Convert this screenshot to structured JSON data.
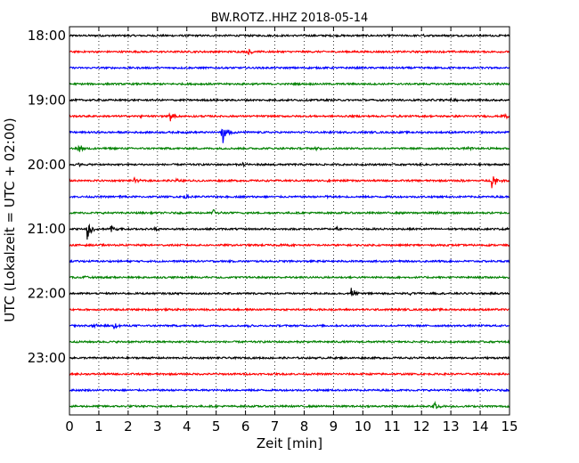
{
  "chart_data": {
    "type": "line",
    "title": "BW.ROTZ..HHZ 2018-05-14",
    "xlabel": "Zeit  [min]",
    "ylabel": "UTC (Lokalzeit = UTC + 02:00)",
    "xlim": [
      0,
      15
    ],
    "x_ticks": [
      "0",
      "1",
      "2",
      "3",
      "4",
      "5",
      "6",
      "7",
      "8",
      "9",
      "10",
      "11",
      "12",
      "13",
      "14",
      "15"
    ],
    "y_tick_labels": [
      "18:00",
      "19:00",
      "20:00",
      "21:00",
      "22:00",
      "23:00"
    ],
    "grid": "vertical dotted",
    "trace_colors": [
      "#000000",
      "#ff0000",
      "#0000ff",
      "#008000"
    ],
    "traces": [
      {
        "start": "18:00",
        "events": [
          {
            "t": 12.0,
            "amp": 0.1
          },
          {
            "t": 13.9,
            "amp": 0.08
          }
        ]
      },
      {
        "start": "18:15",
        "events": [
          {
            "t": 6.1,
            "amp": 0.45
          }
        ]
      },
      {
        "start": "18:30",
        "events": []
      },
      {
        "start": "18:45",
        "events": []
      },
      {
        "start": "19:00",
        "events": [
          {
            "t": 10.5,
            "amp": 0.15
          },
          {
            "t": 12.2,
            "amp": 0.15
          },
          {
            "t": 13.0,
            "amp": 0.2
          }
        ]
      },
      {
        "start": "19:15",
        "events": [
          {
            "t": 2.4,
            "amp": 0.1
          },
          {
            "t": 3.4,
            "amp": 0.6
          },
          {
            "t": 14.8,
            "amp": 0.3
          }
        ]
      },
      {
        "start": "19:30",
        "events": [
          {
            "t": 5.2,
            "amp": 1.5
          }
        ]
      },
      {
        "start": "19:45",
        "events": [
          {
            "t": 0.3,
            "amp": 0.5
          },
          {
            "t": 8.4,
            "amp": 0.2
          },
          {
            "t": 13.6,
            "amp": 0.2
          }
        ]
      },
      {
        "start": "20:00",
        "events": [
          {
            "t": 0.3,
            "amp": 0.2
          },
          {
            "t": 5.9,
            "amp": 0.25
          }
        ]
      },
      {
        "start": "20:15",
        "events": [
          {
            "t": 2.2,
            "amp": 0.25
          },
          {
            "t": 3.6,
            "amp": 0.25
          },
          {
            "t": 8.8,
            "amp": 0.3
          },
          {
            "t": 13.3,
            "amp": 0.15
          },
          {
            "t": 14.4,
            "amp": 1.0
          }
        ]
      },
      {
        "start": "20:30",
        "events": [
          {
            "t": 1.7,
            "amp": 0.25
          },
          {
            "t": 3.9,
            "amp": 0.25
          },
          {
            "t": 5.2,
            "amp": 0.1
          },
          {
            "t": 8.7,
            "amp": 0.2
          }
        ]
      },
      {
        "start": "20:45",
        "events": [
          {
            "t": 4.9,
            "amp": 0.5
          },
          {
            "t": 12.5,
            "amp": 0.1
          }
        ]
      },
      {
        "start": "21:00",
        "events": [
          {
            "t": 0.6,
            "amp": 1.2
          },
          {
            "t": 1.4,
            "amp": 0.5
          },
          {
            "t": 2.9,
            "amp": 0.25
          },
          {
            "t": 9.1,
            "amp": 0.15
          },
          {
            "t": 14.8,
            "amp": 0.15
          }
        ]
      },
      {
        "start": "21:15",
        "events": [
          {
            "t": 1.0,
            "amp": 0.1
          },
          {
            "t": 7.2,
            "amp": 0.2
          }
        ]
      },
      {
        "start": "21:30",
        "events": [
          {
            "t": 15.0,
            "amp": 0.15
          }
        ]
      },
      {
        "start": "21:45",
        "events": [
          {
            "t": 0.5,
            "amp": 0.1
          },
          {
            "t": 4.0,
            "amp": 0.08
          },
          {
            "t": 4.9,
            "amp": 0.08
          }
        ]
      },
      {
        "start": "22:00",
        "events": [
          {
            "t": 9.6,
            "amp": 0.6
          },
          {
            "t": 11.6,
            "amp": 0.2
          }
        ]
      },
      {
        "start": "22:15",
        "events": []
      },
      {
        "start": "22:30",
        "events": [
          {
            "t": 0.8,
            "amp": 0.3
          },
          {
            "t": 1.5,
            "amp": 0.4
          },
          {
            "t": 6.1,
            "amp": 0.15
          }
        ]
      },
      {
        "start": "22:45",
        "events": []
      },
      {
        "start": "23:00",
        "events": []
      },
      {
        "start": "23:15",
        "events": []
      },
      {
        "start": "23:30",
        "events": []
      },
      {
        "start": "23:45",
        "events": [
          {
            "t": 12.4,
            "amp": 0.7
          }
        ]
      }
    ]
  }
}
